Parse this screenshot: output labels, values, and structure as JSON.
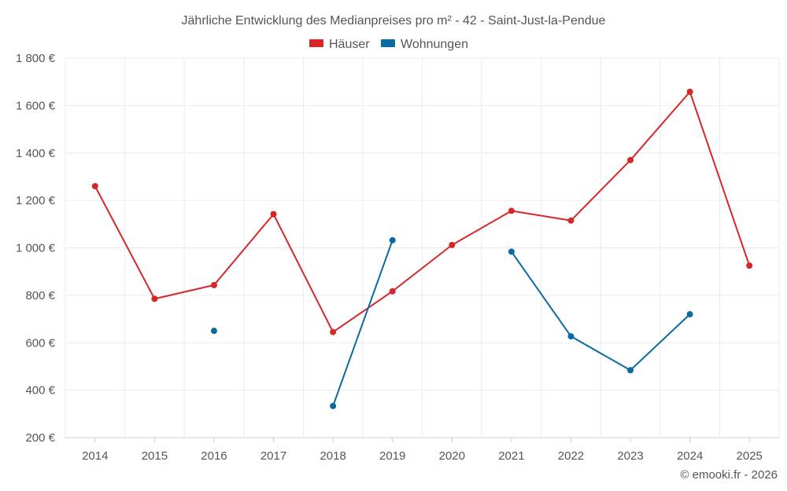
{
  "chart_data": {
    "type": "line",
    "title": "Jährliche Entwicklung des Medianpreises pro m² - 42 - Saint-Just-la-Pendue",
    "categories": [
      "2014",
      "2015",
      "2016",
      "2017",
      "2018",
      "2019",
      "2020",
      "2021",
      "2022",
      "2023",
      "2024",
      "2025"
    ],
    "ylim": [
      200,
      1800
    ],
    "yticks": [
      200,
      400,
      600,
      800,
      1000,
      1200,
      1400,
      1600,
      1800
    ],
    "ytick_labels": [
      "200 €",
      "400 €",
      "600 €",
      "800 €",
      "1 000 €",
      "1 200 €",
      "1 400 €",
      "1 600 €",
      "1 800 €"
    ],
    "grid": true,
    "legend_position": "top-center",
    "series": [
      {
        "name": "Häuser",
        "color": "#d62728",
        "values": [
          1260,
          785,
          843,
          1142,
          645,
          817,
          1012,
          1156,
          1115,
          1370,
          1658,
          925
        ]
      },
      {
        "name": "Wohnungen",
        "color": "#0a6aa1",
        "values": [
          null,
          null,
          650,
          null,
          333,
          1032,
          null,
          984,
          627,
          484,
          720,
          null
        ]
      }
    ]
  },
  "credit": "© emooki.fr - 2026"
}
